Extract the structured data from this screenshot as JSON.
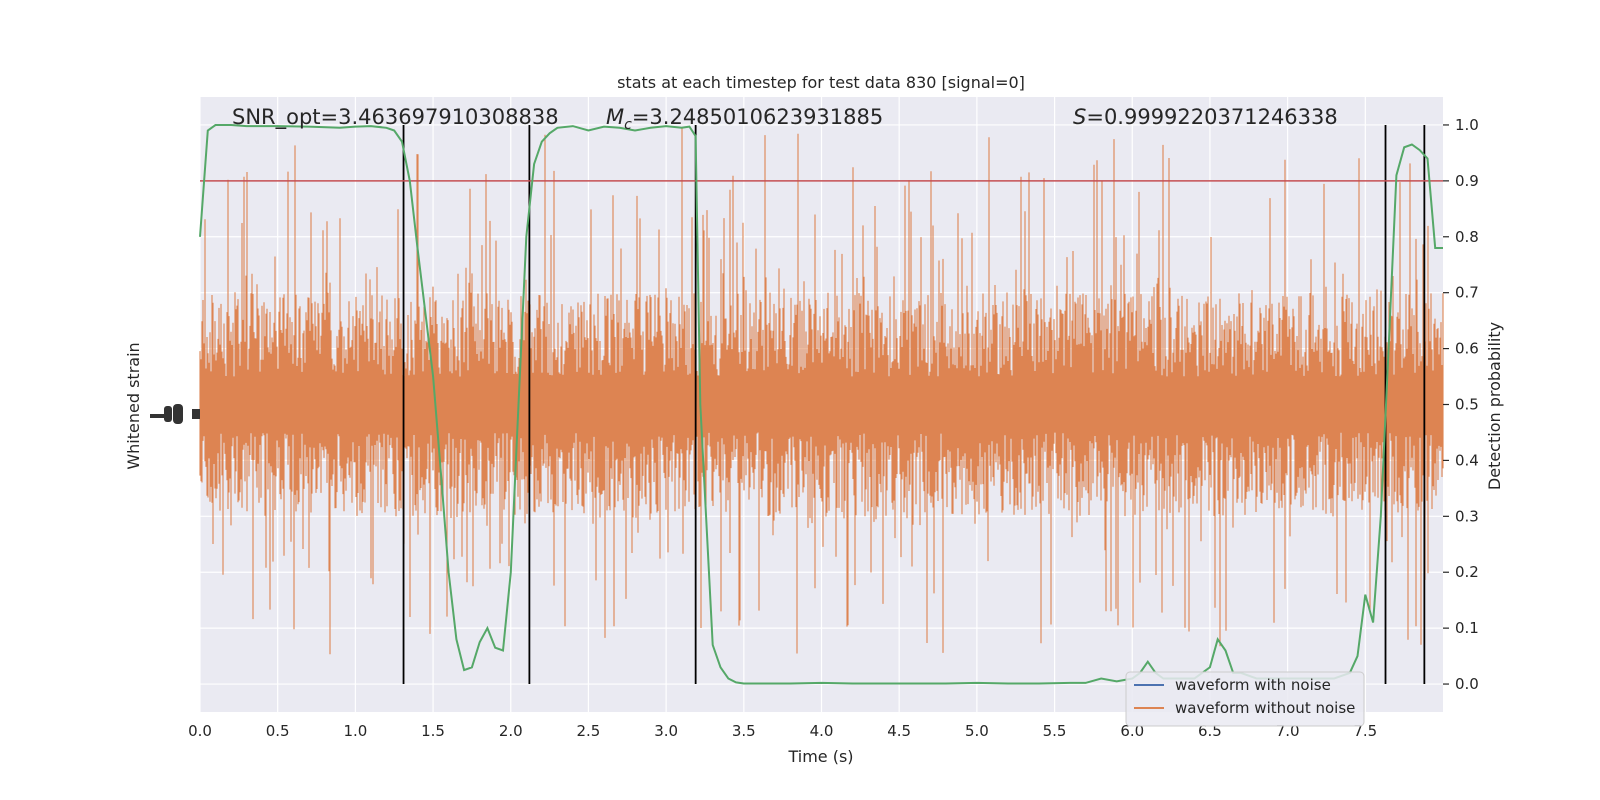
{
  "chart_data": {
    "type": "line",
    "title": "stats at each timestep for test data 830 [signal=0]",
    "xlabel": "Time (s)",
    "ylabel_left": "Whitened strain",
    "ylabel_right": "Detection probability",
    "xlim": [
      0.0,
      8.0
    ],
    "ylim_right": [
      -0.05,
      1.05
    ],
    "x_ticks": [
      "0.0",
      "0.5",
      "1.0",
      "1.5",
      "2.0",
      "2.5",
      "3.0",
      "3.5",
      "4.0",
      "4.5",
      "5.0",
      "5.5",
      "6.0",
      "6.5",
      "7.0",
      "7.5"
    ],
    "y_ticks_right": [
      "0.0",
      "0.1",
      "0.2",
      "0.3",
      "0.4",
      "0.5",
      "0.6",
      "0.7",
      "0.8",
      "0.9",
      "1.0"
    ],
    "grid": true,
    "annotations": {
      "snr": "SNR_opt=3.463697910308838",
      "mc_symbol": "M",
      "mc_sub": "c",
      "mc_value": "=3.2485010623931885",
      "s_symbol": "S",
      "s_value": "=0.9999220371246338"
    },
    "threshold": 0.9,
    "vlines_x": [
      1.31,
      2.12,
      3.19,
      7.63,
      7.88
    ],
    "series": [
      {
        "name": "waveform with noise",
        "color": "#4c72b0",
        "values": []
      },
      {
        "name": "waveform without noise",
        "color": "#dd8452",
        "style": "dense noise band, approx. centered at 0.5 on the right-axis scale",
        "band_center": 0.5,
        "band_core_half_width": 0.2,
        "spike_extent": [
          0.05,
          1.0
        ]
      },
      {
        "name": "detection probability",
        "color": "#55a868",
        "x": [
          0.0,
          0.05,
          0.1,
          0.2,
          0.3,
          0.5,
          0.7,
          0.9,
          1.0,
          1.1,
          1.2,
          1.25,
          1.3,
          1.35,
          1.4,
          1.5,
          1.55,
          1.6,
          1.65,
          1.7,
          1.75,
          1.8,
          1.85,
          1.9,
          1.95,
          2.0,
          2.05,
          2.1,
          2.15,
          2.2,
          2.25,
          2.3,
          2.4,
          2.5,
          2.6,
          2.7,
          2.8,
          2.9,
          3.0,
          3.1,
          3.15,
          3.19,
          3.22,
          3.3,
          3.35,
          3.4,
          3.45,
          3.5,
          3.6,
          3.8,
          4.0,
          4.2,
          4.4,
          4.6,
          4.8,
          5.0,
          5.2,
          5.4,
          5.6,
          5.7,
          5.8,
          5.9,
          6.0,
          6.05,
          6.1,
          6.15,
          6.2,
          6.3,
          6.4,
          6.5,
          6.55,
          6.6,
          6.65,
          6.7,
          6.8,
          6.9,
          7.0,
          7.1,
          7.2,
          7.3,
          7.4,
          7.45,
          7.5,
          7.55,
          7.6,
          7.65,
          7.7,
          7.75,
          7.8,
          7.85,
          7.9,
          7.95,
          8.0
        ],
        "values": [
          0.8,
          0.99,
          1.0,
          1.0,
          0.998,
          0.998,
          0.997,
          0.995,
          0.997,
          0.998,
          0.995,
          0.99,
          0.97,
          0.9,
          0.78,
          0.55,
          0.38,
          0.2,
          0.08,
          0.025,
          0.03,
          0.075,
          0.1,
          0.065,
          0.06,
          0.2,
          0.5,
          0.8,
          0.93,
          0.97,
          0.985,
          0.995,
          0.998,
          0.99,
          0.997,
          0.995,
          0.99,
          0.995,
          0.998,
          0.995,
          0.997,
          0.98,
          0.5,
          0.07,
          0.03,
          0.01,
          0.003,
          0.001,
          0.001,
          0.001,
          0.002,
          0.001,
          0.001,
          0.001,
          0.001,
          0.002,
          0.001,
          0.001,
          0.002,
          0.002,
          0.01,
          0.005,
          0.01,
          0.02,
          0.04,
          0.02,
          0.01,
          0.01,
          0.01,
          0.03,
          0.08,
          0.06,
          0.02,
          0.02,
          0.01,
          0.01,
          0.01,
          0.01,
          0.01,
          0.01,
          0.02,
          0.05,
          0.16,
          0.11,
          0.3,
          0.6,
          0.91,
          0.96,
          0.965,
          0.955,
          0.94,
          0.78,
          0.78
        ]
      }
    ],
    "legend": {
      "placement": "lower-right",
      "entries": [
        "waveform with noise",
        "waveform without noise"
      ]
    }
  }
}
